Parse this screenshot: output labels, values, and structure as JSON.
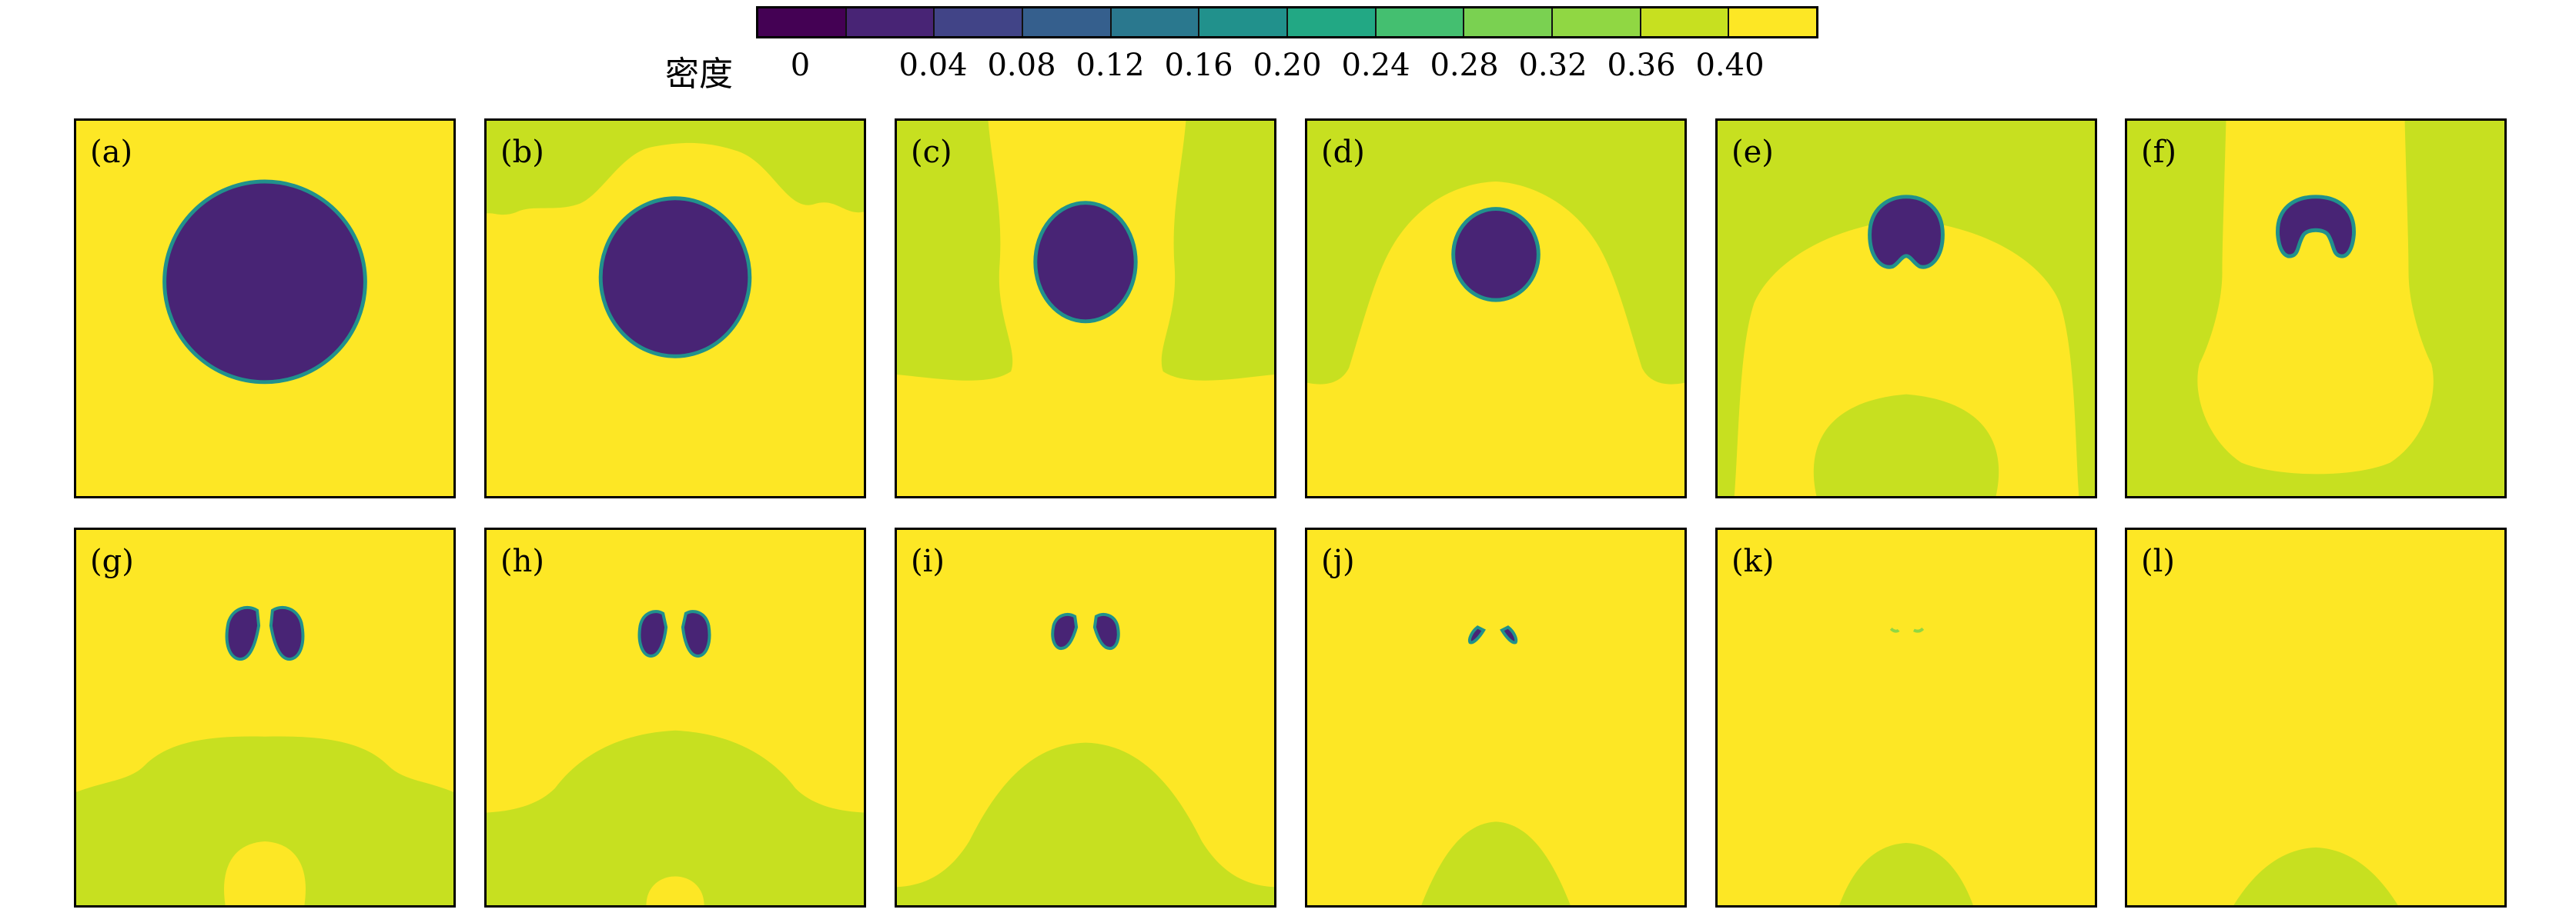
{
  "colorbar": {
    "label": "密度",
    "colors": [
      "#440154",
      "#482475",
      "#414487",
      "#355F8D",
      "#2A788E",
      "#21918C",
      "#22A884",
      "#44BF70",
      "#7AD151",
      "#90D743",
      "#C7E020",
      "#FDE725"
    ],
    "ticks": [
      "0",
      "0.04",
      "0.08",
      "0.12",
      "0.16",
      "0.20",
      "0.24",
      "0.28",
      "0.32",
      "0.36",
      "0.40"
    ]
  },
  "panels": [
    {
      "label": "(a)"
    },
    {
      "label": "(b)"
    },
    {
      "label": "(c)"
    },
    {
      "label": "(d)"
    },
    {
      "label": "(e)"
    },
    {
      "label": "(f)"
    },
    {
      "label": "(g)"
    },
    {
      "label": "(h)"
    },
    {
      "label": "(i)"
    },
    {
      "label": "(j)"
    },
    {
      "label": "(k)"
    },
    {
      "label": "(l)"
    }
  ],
  "palette": {
    "background": "#FDE725",
    "light_region": "#C7E020",
    "bubble": "#482475",
    "bubble_edge": "#21918C"
  }
}
